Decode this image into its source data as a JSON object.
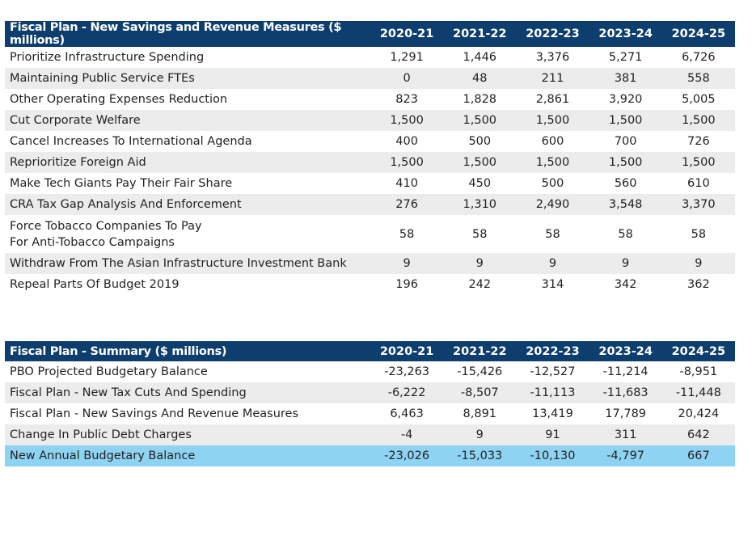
{
  "savings": {
    "title": "Fiscal Plan - New Savings and Revenue Measures ($ millions)",
    "years": [
      "2020-21",
      "2021-22",
      "2022-23",
      "2023-24",
      "2024-25"
    ],
    "rows": [
      {
        "label": [
          "Prioritize Infrastructure Spending"
        ],
        "values": [
          "1,291",
          "1,446",
          "3,376",
          "5,271",
          "6,726"
        ]
      },
      {
        "label": [
          "Maintaining Public Service FTEs"
        ],
        "values": [
          "0",
          "48",
          "211",
          "381",
          "558"
        ]
      },
      {
        "label": [
          "Other Operating Expenses Reduction"
        ],
        "values": [
          "823",
          "1,828",
          "2,861",
          "3,920",
          "5,005"
        ]
      },
      {
        "label": [
          "Cut Corporate Welfare"
        ],
        "values": [
          "1,500",
          "1,500",
          "1,500",
          "1,500",
          "1,500"
        ]
      },
      {
        "label": [
          "Cancel Increases To International Agenda"
        ],
        "values": [
          "400",
          "500",
          "600",
          "700",
          "726"
        ]
      },
      {
        "label": [
          "Reprioritize Foreign Aid"
        ],
        "values": [
          "1,500",
          "1,500",
          "1,500",
          "1,500",
          "1,500"
        ]
      },
      {
        "label": [
          "Make Tech Giants Pay Their Fair Share"
        ],
        "values": [
          "410",
          "450",
          "500",
          "560",
          "610"
        ]
      },
      {
        "label": [
          "CRA Tax Gap Analysis And Enforcement"
        ],
        "values": [
          "276",
          "1,310",
          "2,490",
          "3,548",
          "3,370"
        ]
      },
      {
        "label": [
          "Force Tobacco Companies To Pay",
          "For Anti-Tobacco Campaigns"
        ],
        "values": [
          "58",
          "58",
          "58",
          "58",
          "58"
        ]
      },
      {
        "label": [
          "Withdraw From The Asian Infrastructure Investment Bank"
        ],
        "values": [
          "9",
          "9",
          "9",
          "9",
          "9"
        ]
      },
      {
        "label": [
          "Repeal Parts Of Budget 2019"
        ],
        "values": [
          "196",
          "242",
          "314",
          "342",
          "362"
        ]
      }
    ]
  },
  "summary": {
    "title": "Fiscal Plan - Summary ($ millions)",
    "years": [
      "2020-21",
      "2021-22",
      "2022-23",
      "2023-24",
      "2024-25"
    ],
    "rows": [
      {
        "label": [
          "PBO Projected Budgetary Balance"
        ],
        "values": [
          "-23,263",
          "-15,426",
          "-12,527",
          "-11,214",
          "-8,951"
        ]
      },
      {
        "label": [
          "Fiscal Plan - New Tax Cuts And Spending"
        ],
        "values": [
          "-6,222",
          "-8,507",
          "-11,113",
          "-11,683",
          "-11,448"
        ]
      },
      {
        "label": [
          "Fiscal Plan - New Savings And Revenue Measures"
        ],
        "values": [
          "6,463",
          "8,891",
          "13,419",
          "17,789",
          "20,424"
        ]
      },
      {
        "label": [
          "Change In Public Debt Charges"
        ],
        "values": [
          "-4",
          "9",
          "91",
          "311",
          "642"
        ]
      },
      {
        "label": [
          "New Annual Budgetary Balance"
        ],
        "values": [
          "-23,026",
          "-15,033",
          "-10,130",
          "-4,797",
          "667"
        ],
        "highlight": true
      }
    ]
  },
  "colors": {
    "header_bg": "#0d3e6e",
    "alt_row_bg": "#ececec",
    "highlight_bg": "#8ed3f2"
  }
}
